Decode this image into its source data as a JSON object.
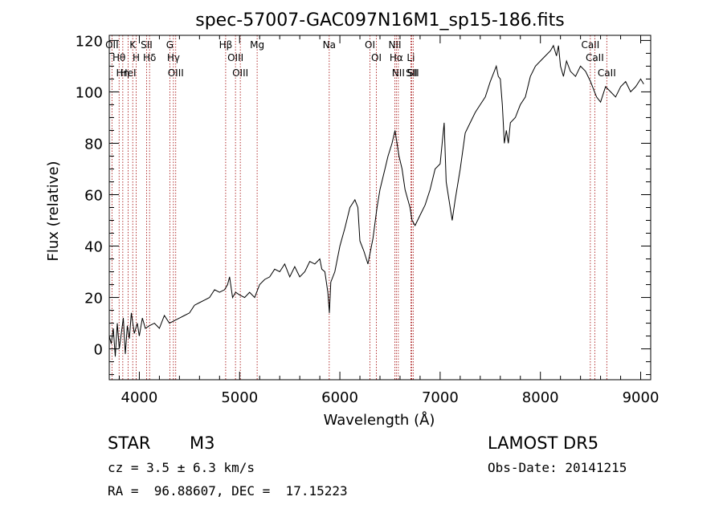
{
  "chart_data": {
    "type": "line",
    "title": "spec-57007-GAC097N16M1_sp15-186.fits",
    "xlabel": "Wavelength (Å)",
    "ylabel": "Flux (relative)",
    "xlim": [
      3700,
      9100
    ],
    "ylim": [
      -12,
      122
    ],
    "xticks": [
      4000,
      5000,
      6000,
      7000,
      8000,
      9000
    ],
    "yticks": [
      0,
      20,
      40,
      60,
      80,
      100,
      120
    ],
    "series": [
      {
        "x": [
          3700,
          3720,
          3740,
          3760,
          3780,
          3800,
          3820,
          3840,
          3860,
          3880,
          3900,
          3920,
          3950,
          3980,
          4000,
          4030,
          4060,
          4100,
          4150,
          4200,
          4250,
          4300,
          4350,
          4400,
          4450,
          4500,
          4550,
          4600,
          4650,
          4700,
          4750,
          4800,
          4850,
          4880,
          4900,
          4930,
          4960,
          5000,
          5050,
          5100,
          5150,
          5180,
          5200,
          5250,
          5300,
          5350,
          5400,
          5450,
          5500,
          5550,
          5600,
          5650,
          5700,
          5750,
          5800,
          5820,
          5850,
          5880,
          5895,
          5910,
          5950,
          6000,
          6050,
          6100,
          6150,
          6180,
          6200,
          6240,
          6280,
          6300,
          6330,
          6370,
          6400,
          6450,
          6480,
          6520,
          6550,
          6570,
          6590,
          6620,
          6650,
          6700,
          6720,
          6750,
          6800,
          6850,
          6900,
          6950,
          7000,
          7020,
          7040,
          7060,
          7080,
          7100,
          7120,
          7150,
          7200,
          7250,
          7300,
          7350,
          7400,
          7450,
          7500,
          7540,
          7560,
          7580,
          7600,
          7620,
          7640,
          7660,
          7680,
          7700,
          7750,
          7800,
          7850,
          7900,
          7950,
          8000,
          8050,
          8100,
          8130,
          8160,
          8180,
          8200,
          8230,
          8260,
          8300,
          8350,
          8400,
          8450,
          8500,
          8540,
          8560,
          8600,
          8650,
          8700,
          8750,
          8800,
          8850,
          8900,
          8950,
          9000,
          9030
        ],
        "y": [
          5,
          2,
          8,
          -3,
          10,
          0,
          6,
          12,
          -2,
          9,
          4,
          14,
          6,
          10,
          5,
          12,
          8,
          9,
          10,
          8,
          13,
          10,
          11,
          12,
          13,
          14,
          17,
          18,
          19,
          20,
          23,
          22,
          23,
          25,
          28,
          20,
          22,
          21,
          20,
          22,
          20,
          23,
          25,
          27,
          28,
          31,
          30,
          33,
          28,
          32,
          28,
          30,
          34,
          33,
          35,
          31,
          30,
          22,
          14,
          26,
          30,
          40,
          47,
          55,
          58,
          55,
          42,
          38,
          33,
          37,
          43,
          55,
          62,
          70,
          75,
          80,
          85,
          80,
          75,
          70,
          62,
          55,
          50,
          48,
          52,
          56,
          62,
          70,
          72,
          80,
          88,
          65,
          60,
          55,
          50,
          58,
          70,
          84,
          88,
          92,
          95,
          98,
          104,
          108,
          110,
          106,
          105,
          95,
          80,
          85,
          80,
          88,
          90,
          95,
          98,
          106,
          110,
          112,
          114,
          116,
          118,
          114,
          118,
          110,
          106,
          112,
          108,
          106,
          110,
          108,
          104,
          100,
          98,
          96,
          102,
          100,
          98,
          102,
          104,
          100,
          102,
          105,
          103
        ]
      }
    ],
    "lines": [
      {
        "wl": 3727,
        "label": "OII"
      },
      {
        "wl": 3798,
        "label": "Hθ"
      },
      {
        "wl": 3835,
        "label": "Hη"
      },
      {
        "wl": 3889,
        "label": "HeI"
      },
      {
        "wl": 3934,
        "label": "K"
      },
      {
        "wl": 3969,
        "label": "H"
      },
      {
        "wl": 4072,
        "label": "SII"
      },
      {
        "wl": 4102,
        "label": "Hδ"
      },
      {
        "wl": 4304,
        "label": "G"
      },
      {
        "wl": 4340,
        "label": "Hγ"
      },
      {
        "wl": 4363,
        "label": "OIII"
      },
      {
        "wl": 4861,
        "label": "Hβ"
      },
      {
        "wl": 4959,
        "label": "OIII"
      },
      {
        "wl": 5007,
        "label": "OIII"
      },
      {
        "wl": 5175,
        "label": "Mg"
      },
      {
        "wl": 5894,
        "label": "Na"
      },
      {
        "wl": 6300,
        "label": "OI"
      },
      {
        "wl": 6364,
        "label": "OI"
      },
      {
        "wl": 6548,
        "label": "NII"
      },
      {
        "wl": 6563,
        "label": "Hα"
      },
      {
        "wl": 6583,
        "label": "NII"
      },
      {
        "wl": 6708,
        "label": "Li"
      },
      {
        "wl": 6716,
        "label": "SII"
      },
      {
        "wl": 6731,
        "label": "SII"
      },
      {
        "wl": 8498,
        "label": "CaII"
      },
      {
        "wl": 8542,
        "label": "CaII"
      },
      {
        "wl": 8662,
        "label": "CaII"
      }
    ]
  },
  "info": {
    "class_label": "STAR",
    "subclass": "M3",
    "survey": "LAMOST DR5",
    "cz": "cz = 3.5 ± 6.3 km/s",
    "obs_date": "Obs-Date: 20141215",
    "coords": "RA =  96.88607, DEC =  17.15223"
  },
  "colors": {
    "line_marker": "#a00000",
    "spectrum": "#000000"
  }
}
